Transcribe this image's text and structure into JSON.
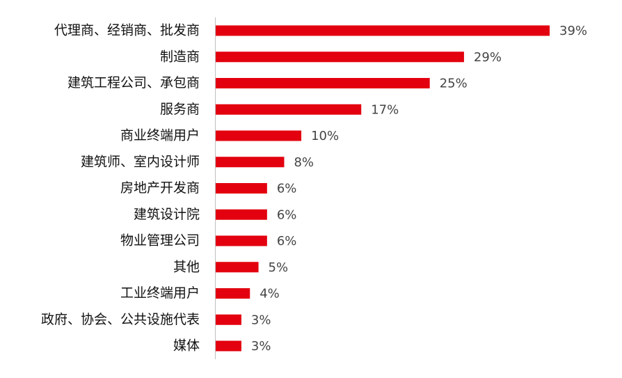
{
  "chart_data": {
    "type": "bar",
    "orientation": "horizontal",
    "categories": [
      "代理商、经销商、批发商",
      "制造商",
      "建筑工程公司、承包商",
      "服务商",
      "商业终端用户",
      "建筑师、室内设计师",
      "房地产开发商",
      "建筑设计院",
      "物业管理公司",
      "其他",
      "工业终端用户",
      "政府、协会、公共设施代表",
      "媒体"
    ],
    "values": [
      39,
      29,
      25,
      17,
      10,
      8,
      6,
      6,
      6,
      5,
      4,
      3,
      3
    ],
    "value_labels": [
      "39%",
      "29%",
      "25%",
      "17%",
      "10%",
      "8%",
      "6%",
      "6%",
      "6%",
      "5%",
      "4%",
      "3%",
      "3%"
    ],
    "color": "#e3000f"
  }
}
